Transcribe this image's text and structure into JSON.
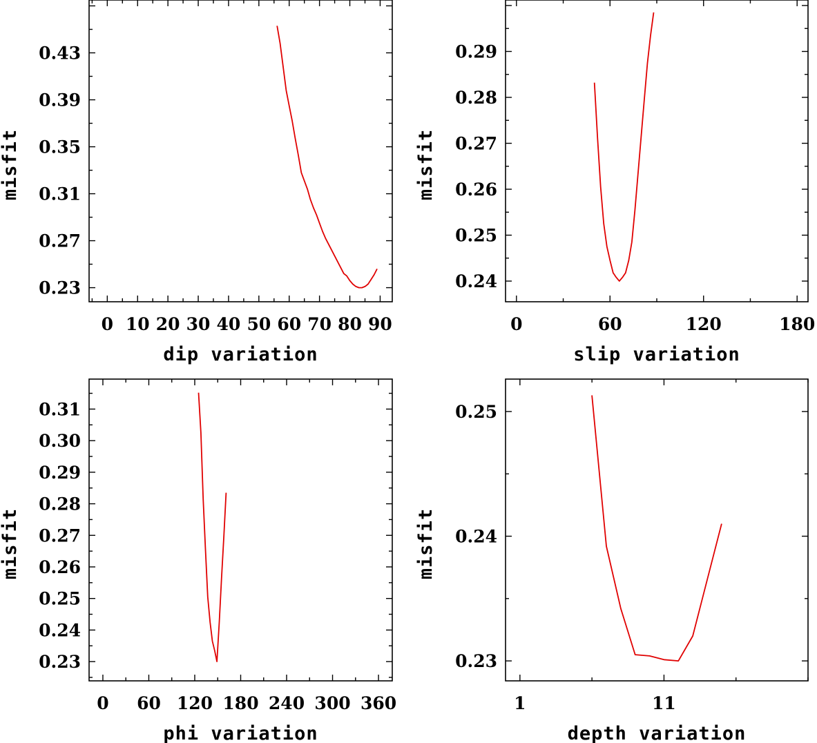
{
  "series_color": "#e00000",
  "axis_color": "#000000",
  "chart_data": [
    {
      "type": "line",
      "panel": "top-left",
      "title": "",
      "xlabel": "dip    variation",
      "ylabel": "misfit",
      "xlim": [
        -6,
        94
      ],
      "ylim": [
        0.218,
        0.475
      ],
      "xticks": [
        0,
        10,
        20,
        30,
        40,
        50,
        60,
        70,
        80,
        90
      ],
      "xtick_labels": [
        "0",
        "10",
        "20",
        "30",
        "40",
        "50",
        "60",
        "70",
        "80",
        "90"
      ],
      "yticks": [
        0.23,
        0.27,
        0.31,
        0.35,
        0.39,
        0.43
      ],
      "ytick_labels": [
        "0.23",
        "0.27",
        "0.31",
        "0.35",
        "0.39",
        "0.43"
      ],
      "x": [
        56,
        57,
        58,
        59,
        60,
        61,
        62,
        63,
        64,
        65,
        66,
        67,
        68,
        69,
        70,
        71,
        72,
        73,
        74,
        75,
        76,
        77,
        78,
        79,
        80,
        81,
        82,
        83,
        84,
        85,
        86,
        87,
        88,
        89
      ],
      "y": [
        0.453,
        0.438,
        0.418,
        0.398,
        0.385,
        0.372,
        0.357,
        0.343,
        0.328,
        0.321,
        0.314,
        0.305,
        0.298,
        0.292,
        0.285,
        0.278,
        0.272,
        0.267,
        0.262,
        0.257,
        0.252,
        0.247,
        0.242,
        0.24,
        0.236,
        0.233,
        0.231,
        0.23,
        0.23,
        0.231,
        0.233,
        0.237,
        0.241,
        0.246
      ]
    },
    {
      "type": "line",
      "panel": "top-right",
      "title": "",
      "xlabel": "slip   variation",
      "ylabel": "misfit",
      "xlim": [
        -7,
        187
      ],
      "ylim": [
        0.2355,
        0.3012
      ],
      "xticks": [
        0,
        60,
        120,
        180
      ],
      "xtick_labels": [
        "0",
        "60",
        "120",
        "180"
      ],
      "yticks": [
        0.24,
        0.25,
        0.26,
        0.27,
        0.28,
        0.29
      ],
      "ytick_labels": [
        "0.24",
        "0.25",
        "0.26",
        "0.27",
        "0.28",
        "0.29"
      ],
      "x": [
        50,
        52,
        54,
        56,
        58,
        60,
        62,
        64,
        66,
        68,
        70,
        72,
        74,
        76,
        78,
        80,
        82,
        84,
        86,
        88
      ],
      "y": [
        0.2832,
        0.2712,
        0.2605,
        0.2525,
        0.2475,
        0.2445,
        0.2418,
        0.2408,
        0.24,
        0.2408,
        0.2418,
        0.2445,
        0.2485,
        0.2555,
        0.2635,
        0.2715,
        0.2795,
        0.2875,
        0.2935,
        0.2985
      ]
    },
    {
      "type": "line",
      "panel": "bottom-left",
      "title": "",
      "xlabel": "phi    variation",
      "ylabel": "misfit",
      "xlim": [
        -18,
        378
      ],
      "ylim": [
        0.2239,
        0.3195
      ],
      "xticks": [
        0,
        60,
        120,
        180,
        240,
        300,
        360
      ],
      "xtick_labels": [
        "0",
        "60",
        "120",
        "180",
        "240",
        "300",
        "360"
      ],
      "yticks": [
        0.23,
        0.24,
        0.25,
        0.26,
        0.27,
        0.28,
        0.29,
        0.3,
        0.31
      ],
      "ytick_labels": [
        "0.23",
        "0.24",
        "0.25",
        "0.26",
        "0.27",
        "0.28",
        "0.29",
        "0.30",
        "0.31"
      ],
      "x": [
        125,
        128,
        131,
        134,
        137,
        140,
        143,
        146,
        149,
        152,
        155,
        158,
        161
      ],
      "y": [
        0.3152,
        0.3025,
        0.2815,
        0.2655,
        0.2505,
        0.2425,
        0.2365,
        0.2335,
        0.23,
        0.2425,
        0.2565,
        0.2695,
        0.2835
      ]
    },
    {
      "type": "line",
      "panel": "bottom-right",
      "title": "",
      "xlabel": "depth  variation",
      "ylabel": "misfit",
      "xlim": [
        0,
        21
      ],
      "ylim": [
        0.2284,
        0.2526
      ],
      "xticks": [
        1,
        11
      ],
      "xtick_labels": [
        "1",
        "11"
      ],
      "yticks": [
        0.23,
        0.24,
        0.25
      ],
      "ytick_labels": [
        "0.23",
        "0.24",
        "0.25"
      ],
      "x": [
        6,
        7,
        8,
        9,
        10,
        11,
        12,
        13,
        14,
        15
      ],
      "y": [
        0.2513,
        0.2392,
        0.2342,
        0.2305,
        0.2304,
        0.2301,
        0.23,
        0.232,
        0.2365,
        0.241
      ]
    }
  ]
}
